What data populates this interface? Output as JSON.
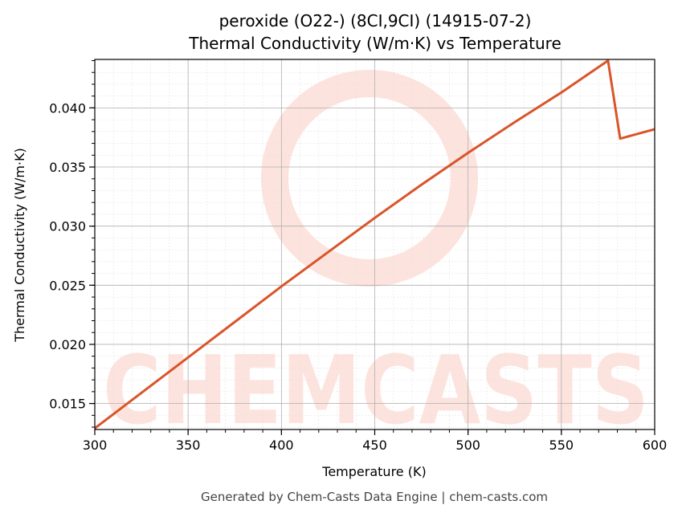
{
  "chart_data": {
    "type": "line",
    "title": "peroxide (O22-) (8CI,9CI) (14915-07-2)",
    "subtitle": "Thermal Conductivity (W/m·K) vs Temperature",
    "xlabel": "Temperature (K)",
    "ylabel": "Thermal Conductivity (W/m·K)",
    "xlim": [
      300,
      600
    ],
    "ylim": [
      0.0128,
      0.0441
    ],
    "x_ticks": [
      300,
      350,
      400,
      450,
      500,
      550,
      600
    ],
    "y_ticks": [
      0.015,
      0.02,
      0.025,
      0.03,
      0.035,
      0.04
    ],
    "y_tick_labels": [
      "0.015",
      "0.020",
      "0.025",
      "0.030",
      "0.035",
      "0.040"
    ],
    "grid": true,
    "line_color": "#d9552a",
    "series": [
      {
        "x": [
          300,
          325,
          350,
          375,
          400,
          425,
          450,
          475,
          500,
          525,
          550,
          575,
          581.5,
          600
        ],
        "values": [
          0.0129,
          0.0159,
          0.0189,
          0.0219,
          0.0249,
          0.0278,
          0.0307,
          0.0335,
          0.0362,
          0.0388,
          0.0413,
          0.044,
          0.0374,
          0.0382
        ]
      }
    ]
  },
  "watermark": {
    "text": "CHEMCASTS",
    "color": "#fde3dd"
  },
  "footer": "Generated by Chem-Casts Data Engine | chem-casts.com"
}
